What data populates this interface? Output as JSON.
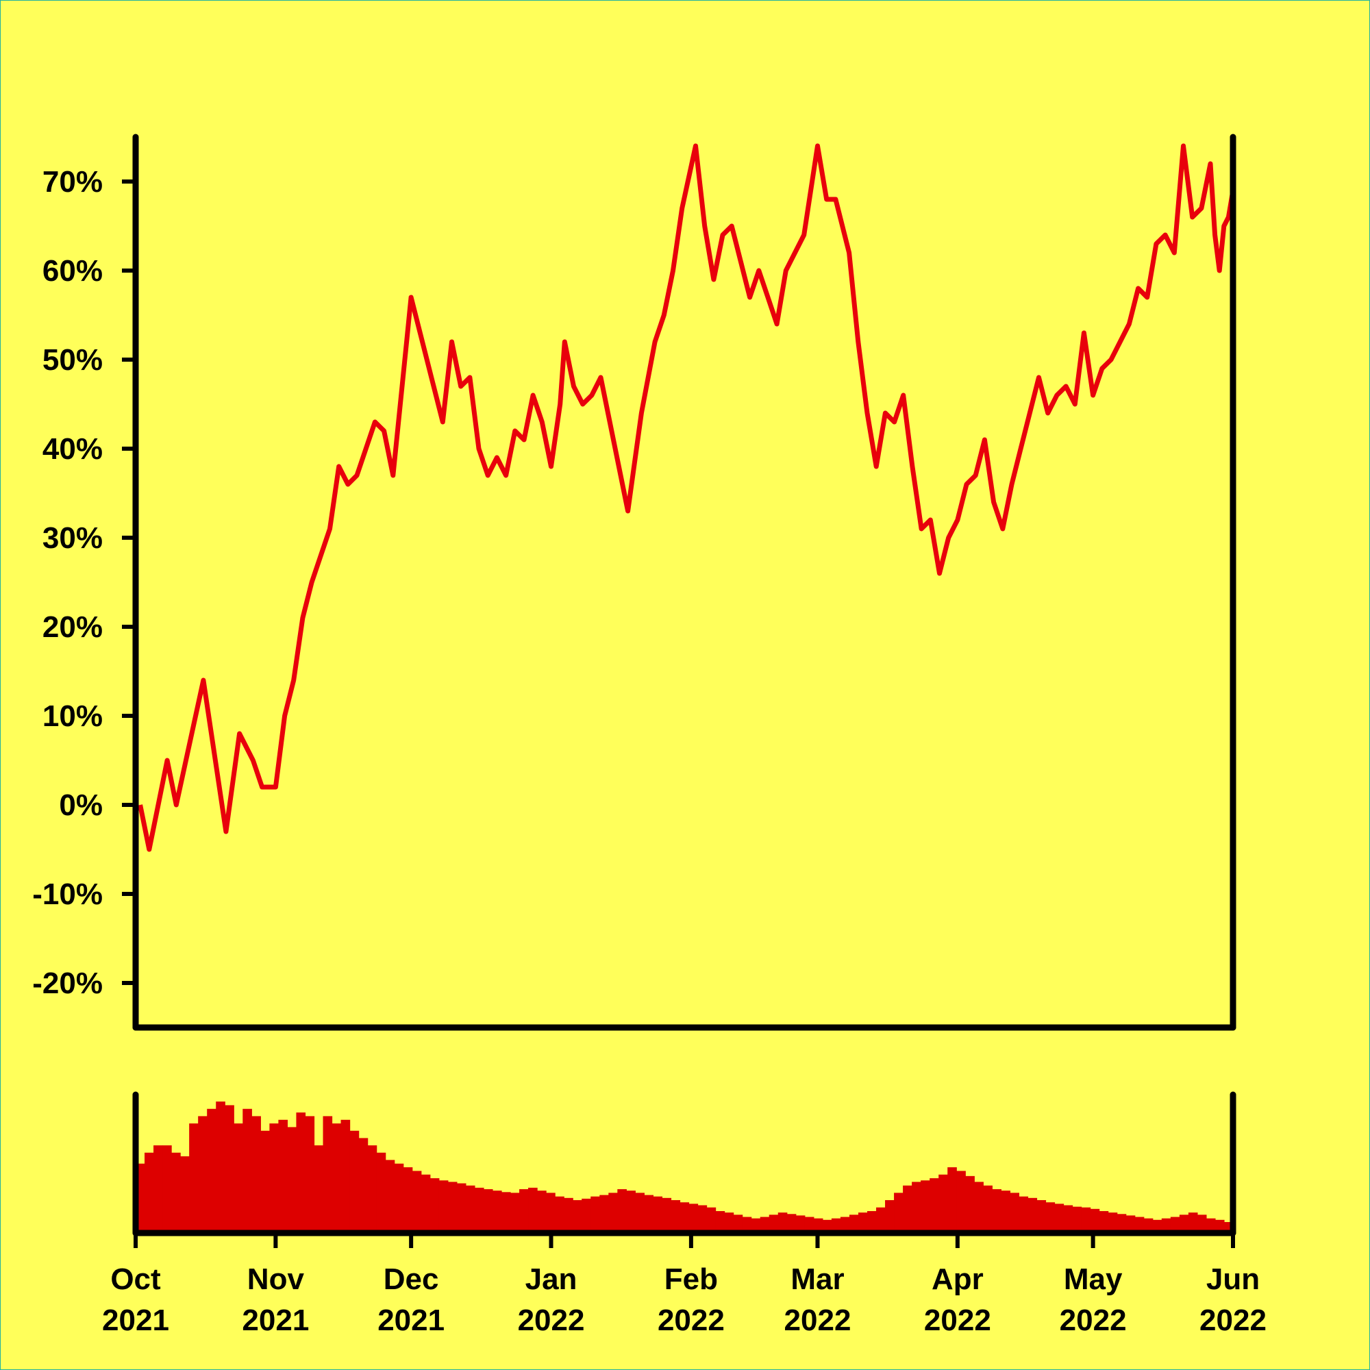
{
  "chart_data": {
    "type": "line",
    "title": "",
    "xlabel": "",
    "ylabel": "",
    "background": "#ffff5a",
    "line_color": "#e8000b",
    "bar_color": "#dd0000",
    "ylim": [
      -25,
      75
    ],
    "y_ticks": [
      {
        "value": 70,
        "label": "70%"
      },
      {
        "value": 60,
        "label": "60%"
      },
      {
        "value": 50,
        "label": "50%"
      },
      {
        "value": 40,
        "label": "40%"
      },
      {
        "value": 30,
        "label": "30%"
      },
      {
        "value": 20,
        "label": "20%"
      },
      {
        "value": 10,
        "label": "10%"
      },
      {
        "value": 0,
        "label": "0%"
      },
      {
        "value": -10,
        "label": "-10%"
      },
      {
        "value": -20,
        "label": "-20%"
      }
    ],
    "x_range": [
      "2021-10-01",
      "2022-06-01"
    ],
    "x_ticks": [
      {
        "date": "2021-10-01",
        "month": "Oct",
        "year": "2021"
      },
      {
        "date": "2021-11-01",
        "month": "Nov",
        "year": "2021"
      },
      {
        "date": "2021-12-01",
        "month": "Dec",
        "year": "2021"
      },
      {
        "date": "2022-01-01",
        "month": "Jan",
        "year": "2022"
      },
      {
        "date": "2022-02-01",
        "month": "Feb",
        "year": "2022"
      },
      {
        "date": "2022-03-01",
        "month": "Mar",
        "year": "2022"
      },
      {
        "date": "2022-04-01",
        "month": "Apr",
        "year": "2022"
      },
      {
        "date": "2022-05-01",
        "month": "May",
        "year": "2022"
      },
      {
        "date": "2022-06-01",
        "month": "Jun",
        "year": "2022"
      }
    ],
    "series": [
      {
        "values": [
          {
            "x": "2021-10-02",
            "y": 0
          },
          {
            "x": "2021-10-04",
            "y": -5
          },
          {
            "x": "2021-10-06",
            "y": 0
          },
          {
            "x": "2021-10-08",
            "y": 5
          },
          {
            "x": "2021-10-10",
            "y": 0
          },
          {
            "x": "2021-10-13",
            "y": 7
          },
          {
            "x": "2021-10-16",
            "y": 14
          },
          {
            "x": "2021-10-21",
            "y": -3
          },
          {
            "x": "2021-10-24",
            "y": 8
          },
          {
            "x": "2021-10-27",
            "y": 5
          },
          {
            "x": "2021-10-29",
            "y": 2
          },
          {
            "x": "2021-11-01",
            "y": 2
          },
          {
            "x": "2021-11-03",
            "y": 10
          },
          {
            "x": "2021-11-05",
            "y": 14
          },
          {
            "x": "2021-11-07",
            "y": 21
          },
          {
            "x": "2021-11-09",
            "y": 25
          },
          {
            "x": "2021-11-11",
            "y": 28
          },
          {
            "x": "2021-11-13",
            "y": 31
          },
          {
            "x": "2021-11-15",
            "y": 38
          },
          {
            "x": "2021-11-17",
            "y": 36
          },
          {
            "x": "2021-11-19",
            "y": 37
          },
          {
            "x": "2021-11-21",
            "y": 40
          },
          {
            "x": "2021-11-23",
            "y": 43
          },
          {
            "x": "2021-11-25",
            "y": 42
          },
          {
            "x": "2021-11-27",
            "y": 37
          },
          {
            "x": "2021-11-30",
            "y": 52
          },
          {
            "x": "2021-12-01",
            "y": 57
          },
          {
            "x": "2021-12-04",
            "y": 51
          },
          {
            "x": "2021-12-06",
            "y": 47
          },
          {
            "x": "2021-12-08",
            "y": 43
          },
          {
            "x": "2021-12-10",
            "y": 52
          },
          {
            "x": "2021-12-12",
            "y": 47
          },
          {
            "x": "2021-12-14",
            "y": 48
          },
          {
            "x": "2021-12-16",
            "y": 40
          },
          {
            "x": "2021-12-18",
            "y": 37
          },
          {
            "x": "2021-12-20",
            "y": 39
          },
          {
            "x": "2021-12-22",
            "y": 37
          },
          {
            "x": "2021-12-24",
            "y": 42
          },
          {
            "x": "2021-12-26",
            "y": 41
          },
          {
            "x": "2021-12-28",
            "y": 46
          },
          {
            "x": "2021-12-30",
            "y": 43
          },
          {
            "x": "2022-01-01",
            "y": 38
          },
          {
            "x": "2022-01-03",
            "y": 45
          },
          {
            "x": "2022-01-04",
            "y": 52
          },
          {
            "x": "2022-01-06",
            "y": 47
          },
          {
            "x": "2022-01-08",
            "y": 45
          },
          {
            "x": "2022-01-10",
            "y": 46
          },
          {
            "x": "2022-01-12",
            "y": 48
          },
          {
            "x": "2022-01-14",
            "y": 43
          },
          {
            "x": "2022-01-16",
            "y": 38
          },
          {
            "x": "2022-01-18",
            "y": 33
          },
          {
            "x": "2022-01-21",
            "y": 44
          },
          {
            "x": "2022-01-24",
            "y": 52
          },
          {
            "x": "2022-01-26",
            "y": 55
          },
          {
            "x": "2022-01-28",
            "y": 60
          },
          {
            "x": "2022-01-30",
            "y": 67
          },
          {
            "x": "2022-02-02",
            "y": 74
          },
          {
            "x": "2022-02-04",
            "y": 65
          },
          {
            "x": "2022-02-06",
            "y": 59
          },
          {
            "x": "2022-02-08",
            "y": 64
          },
          {
            "x": "2022-02-10",
            "y": 65
          },
          {
            "x": "2022-02-12",
            "y": 61
          },
          {
            "x": "2022-02-14",
            "y": 57
          },
          {
            "x": "2022-02-16",
            "y": 60
          },
          {
            "x": "2022-02-18",
            "y": 57
          },
          {
            "x": "2022-02-20",
            "y": 54
          },
          {
            "x": "2022-02-22",
            "y": 60
          },
          {
            "x": "2022-02-24",
            "y": 62
          },
          {
            "x": "2022-02-26",
            "y": 64
          },
          {
            "x": "2022-03-01",
            "y": 74
          },
          {
            "x": "2022-03-03",
            "y": 68
          },
          {
            "x": "2022-03-05",
            "y": 68
          },
          {
            "x": "2022-03-08",
            "y": 62
          },
          {
            "x": "2022-03-10",
            "y": 52
          },
          {
            "x": "2022-03-12",
            "y": 44
          },
          {
            "x": "2022-03-14",
            "y": 38
          },
          {
            "x": "2022-03-16",
            "y": 44
          },
          {
            "x": "2022-03-18",
            "y": 43
          },
          {
            "x": "2022-03-20",
            "y": 46
          },
          {
            "x": "2022-03-22",
            "y": 38
          },
          {
            "x": "2022-03-24",
            "y": 31
          },
          {
            "x": "2022-03-26",
            "y": 32
          },
          {
            "x": "2022-03-28",
            "y": 26
          },
          {
            "x": "2022-03-30",
            "y": 30
          },
          {
            "x": "2022-04-01",
            "y": 32
          },
          {
            "x": "2022-04-03",
            "y": 36
          },
          {
            "x": "2022-04-05",
            "y": 37
          },
          {
            "x": "2022-04-07",
            "y": 41
          },
          {
            "x": "2022-04-09",
            "y": 34
          },
          {
            "x": "2022-04-11",
            "y": 31
          },
          {
            "x": "2022-04-13",
            "y": 36
          },
          {
            "x": "2022-04-15",
            "y": 40
          },
          {
            "x": "2022-04-17",
            "y": 44
          },
          {
            "x": "2022-04-19",
            "y": 48
          },
          {
            "x": "2022-04-21",
            "y": 44
          },
          {
            "x": "2022-04-23",
            "y": 46
          },
          {
            "x": "2022-04-25",
            "y": 47
          },
          {
            "x": "2022-04-27",
            "y": 45
          },
          {
            "x": "2022-04-29",
            "y": 53
          },
          {
            "x": "2022-05-01",
            "y": 46
          },
          {
            "x": "2022-05-03",
            "y": 49
          },
          {
            "x": "2022-05-05",
            "y": 50
          },
          {
            "x": "2022-05-07",
            "y": 52
          },
          {
            "x": "2022-05-09",
            "y": 54
          },
          {
            "x": "2022-05-11",
            "y": 58
          },
          {
            "x": "2022-05-13",
            "y": 57
          },
          {
            "x": "2022-05-15",
            "y": 63
          },
          {
            "x": "2022-05-17",
            "y": 64
          },
          {
            "x": "2022-05-19",
            "y": 62
          },
          {
            "x": "2022-05-21",
            "y": 74
          },
          {
            "x": "2022-05-23",
            "y": 66
          },
          {
            "x": "2022-05-25",
            "y": 67
          },
          {
            "x": "2022-05-27",
            "y": 72
          },
          {
            "x": "2022-05-28",
            "y": 64
          },
          {
            "x": "2022-05-29",
            "y": 60
          },
          {
            "x": "2022-05-30",
            "y": 65
          },
          {
            "x": "2022-05-31",
            "y": 66
          },
          {
            "x": "2022-06-01",
            "y": 69
          }
        ]
      }
    ],
    "volume": [
      95,
      110,
      120,
      120,
      110,
      105,
      150,
      160,
      170,
      180,
      175,
      150,
      170,
      160,
      140,
      150,
      155,
      145,
      165,
      160,
      120,
      160,
      150,
      155,
      140,
      130,
      120,
      110,
      100,
      95,
      90,
      85,
      80,
      75,
      72,
      70,
      68,
      65,
      62,
      60,
      58,
      56,
      55,
      60,
      62,
      58,
      55,
      50,
      48,
      45,
      47,
      50,
      52,
      55,
      60,
      58,
      55,
      52,
      50,
      48,
      45,
      42,
      40,
      38,
      35,
      30,
      28,
      25,
      22,
      20,
      22,
      25,
      28,
      26,
      24,
      22,
      20,
      18,
      20,
      22,
      25,
      28,
      30,
      35,
      45,
      55,
      65,
      70,
      72,
      75,
      80,
      90,
      85,
      78,
      70,
      65,
      60,
      58,
      55,
      50,
      48,
      45,
      42,
      40,
      38,
      36,
      35,
      33,
      30,
      28,
      26,
      24,
      22,
      20,
      18,
      20,
      22,
      25,
      28,
      25,
      20,
      18,
      15
    ]
  }
}
